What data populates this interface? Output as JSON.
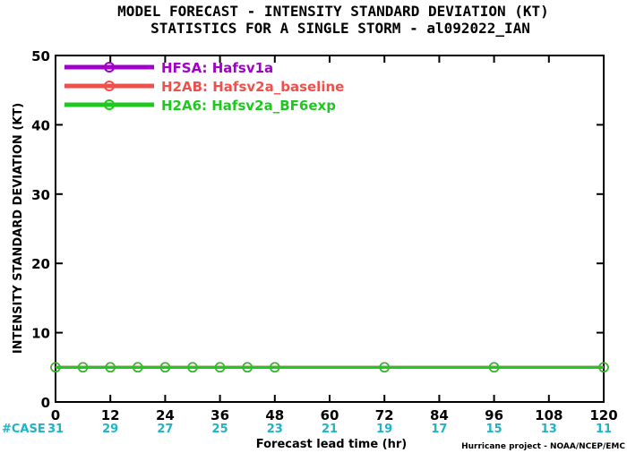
{
  "chart_data": {
    "type": "line",
    "title": "MODEL FORECAST - INTENSITY STANDARD DEVIATION (KT)",
    "subtitle": "STATISTICS FOR A SINGLE STORM - al092022_IAN",
    "xlabel": "Forecast lead time (hr)",
    "ylabel": "INTENSITY STANDARD DEVIATION (KT)",
    "xlim": [
      0,
      120
    ],
    "ylim": [
      0,
      50
    ],
    "x_ticks": [
      0,
      12,
      24,
      36,
      48,
      60,
      72,
      84,
      96,
      108,
      120
    ],
    "y_ticks": [
      0,
      10,
      20,
      30,
      40,
      50
    ],
    "legend_position": "top-left",
    "series": [
      {
        "name": "HFSA: Hafsv1a",
        "color": "#a000c8",
        "x": [
          0,
          6,
          12,
          18,
          24,
          30,
          36,
          42,
          48,
          72,
          96,
          120
        ],
        "y": [
          5,
          5,
          5,
          5,
          5,
          5,
          5,
          5,
          5,
          5,
          5,
          5
        ]
      },
      {
        "name": "H2AB: Hafsv2a_baseline",
        "color": "#f0504b",
        "x": [
          0,
          6,
          12,
          18,
          24,
          30,
          36,
          42,
          48,
          72,
          96,
          120
        ],
        "y": [
          5,
          5,
          5,
          5,
          5,
          5,
          5,
          5,
          5,
          5,
          5,
          5
        ]
      },
      {
        "name": "H2A6: Hafsv2a_BF6exp",
        "color": "#1ec81e",
        "x": [
          0,
          6,
          12,
          18,
          24,
          30,
          36,
          42,
          48,
          72,
          96,
          120
        ],
        "y": [
          5,
          5,
          5,
          5,
          5,
          5,
          5,
          5,
          5,
          5,
          5,
          5
        ]
      }
    ],
    "case_label": "#CASE",
    "case_color": "#1eb4c8",
    "case_counts": [
      {
        "x": 0,
        "n": "31"
      },
      {
        "x": 12,
        "n": "29"
      },
      {
        "x": 24,
        "n": "27"
      },
      {
        "x": 36,
        "n": "25"
      },
      {
        "x": 48,
        "n": "23"
      },
      {
        "x": 60,
        "n": "21"
      },
      {
        "x": 72,
        "n": "19"
      },
      {
        "x": 84,
        "n": "17"
      },
      {
        "x": 96,
        "n": "15"
      },
      {
        "x": 108,
        "n": "13"
      },
      {
        "x": 120,
        "n": "11"
      }
    ],
    "credit": "Hurricane project - NOAA/NCEP/EMC"
  }
}
